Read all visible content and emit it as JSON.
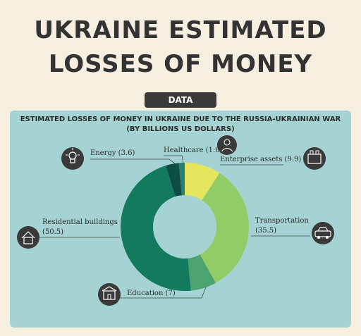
{
  "header": {
    "title_line1": "UKRAINE ESTIMATED",
    "title_line2": "LOSSES OF MONEY",
    "tab_label": "DATA"
  },
  "chart_data": {
    "type": "pie",
    "style": "donut",
    "title": "ESTIMATED LOSSES OF MONEY IN UKRAINE  DUE TO THE RUSSIA-UKRAINIAN WAR",
    "subtitle": "(BY BILLIONS US DOLLARS)",
    "slices": [
      {
        "label": "Energy (3.6)",
        "value": 3.6,
        "color": "#0d4d44"
      },
      {
        "label": "Healthcare (1.6)",
        "value": 1.6,
        "color": "#2a7f6f"
      },
      {
        "label": "Enterprise assets (9.9)",
        "value": 9.9,
        "color": "#e6e65e"
      },
      {
        "label": "Transportation",
        "label_value": "(35.5)",
        "value": 35.5,
        "color": "#92cc67"
      },
      {
        "label": "Education (7)",
        "value": 7,
        "color": "#4ba36d"
      },
      {
        "label": "Residential buildings",
        "label_value": "(50.5)",
        "value": 50.5,
        "color": "#137a60"
      }
    ]
  }
}
